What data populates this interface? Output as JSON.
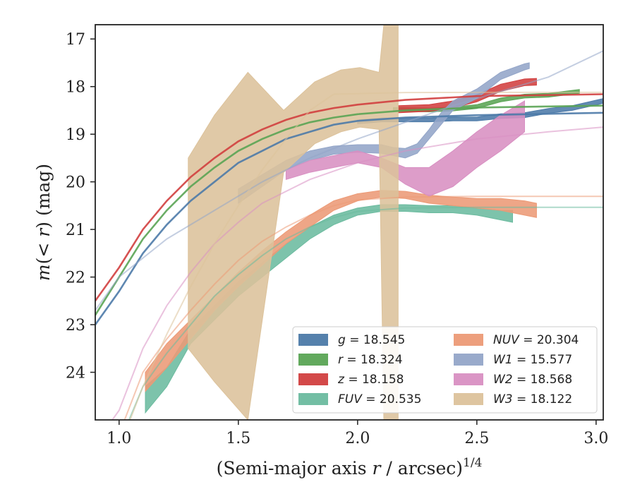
{
  "chart_data": {
    "type": "line",
    "title": "",
    "xlabel": "(Semi-major axis r / arcsec)^{1/4}",
    "xlabel_parts": {
      "pre": "(Semi-major axis ",
      "var": "r",
      "post": " / arcsec)",
      "sup": "1/4"
    },
    "ylabel": "m(< r) (mag)",
    "ylabel_parts": {
      "m": "m",
      "lt": "(< ",
      "r": "r",
      "close": ")",
      "unit": " (mag)"
    },
    "xlim": [
      0.9,
      3.03
    ],
    "ylim": [
      25.0,
      16.7
    ],
    "y_inverted": true,
    "xticks": [
      1.0,
      1.5,
      2.0,
      2.5,
      3.0
    ],
    "xtick_labels": [
      "1.0",
      "1.5",
      "2.0",
      "2.5",
      "3.0"
    ],
    "yticks": [
      17,
      18,
      19,
      20,
      21,
      22,
      23,
      24
    ],
    "ytick_labels": [
      "17",
      "18",
      "19",
      "20",
      "21",
      "22",
      "23",
      "24"
    ],
    "grid": false,
    "legend_placement": "lower-right",
    "legend_columns": 2,
    "series": [
      {
        "name": "g = 18.545",
        "label_var": "g",
        "label_eq": " = ",
        "label_val": "18.545",
        "color": "#4c7aa8",
        "band": [
          [
            2.0,
            18.78,
            18.7
          ],
          [
            2.1,
            18.74,
            18.66
          ],
          [
            2.2,
            18.74,
            18.66
          ],
          [
            2.3,
            18.74,
            18.66
          ],
          [
            2.4,
            18.72,
            18.64
          ],
          [
            2.5,
            18.72,
            18.64
          ],
          [
            2.6,
            18.67,
            18.57
          ],
          [
            2.7,
            18.65,
            18.55
          ],
          [
            2.8,
            18.56,
            18.46
          ],
          [
            2.9,
            18.5,
            18.4
          ],
          [
            3.03,
            18.35,
            18.25
          ]
        ],
        "model": [
          [
            0.9,
            23.0
          ],
          [
            1.0,
            22.3
          ],
          [
            1.1,
            21.5
          ],
          [
            1.2,
            20.9
          ],
          [
            1.3,
            20.4
          ],
          [
            1.4,
            20.0
          ],
          [
            1.5,
            19.6
          ],
          [
            1.6,
            19.35
          ],
          [
            1.7,
            19.1
          ],
          [
            1.8,
            18.95
          ],
          [
            1.9,
            18.8
          ],
          [
            2.0,
            18.72
          ],
          [
            2.2,
            18.65
          ],
          [
            2.5,
            18.6
          ],
          [
            3.03,
            18.55
          ]
        ]
      },
      {
        "name": "r = 18.324",
        "label_var": "r",
        "label_eq": " = ",
        "label_val": "18.324",
        "color": "#5aa454",
        "band": [
          [
            2.15,
            18.52,
            18.44
          ],
          [
            2.3,
            18.53,
            18.45
          ],
          [
            2.4,
            18.51,
            18.43
          ],
          [
            2.5,
            18.46,
            18.38
          ],
          [
            2.6,
            18.32,
            18.24
          ],
          [
            2.7,
            18.24,
            18.16
          ],
          [
            2.8,
            18.22,
            18.14
          ],
          [
            2.93,
            18.14,
            18.06
          ]
        ],
        "model": [
          [
            0.9,
            22.8
          ],
          [
            1.0,
            22.0
          ],
          [
            1.1,
            21.2
          ],
          [
            1.2,
            20.6
          ],
          [
            1.3,
            20.1
          ],
          [
            1.4,
            19.7
          ],
          [
            1.5,
            19.35
          ],
          [
            1.6,
            19.1
          ],
          [
            1.7,
            18.9
          ],
          [
            1.8,
            18.75
          ],
          [
            1.9,
            18.65
          ],
          [
            2.0,
            18.58
          ],
          [
            2.2,
            18.5
          ],
          [
            2.5,
            18.44
          ],
          [
            3.03,
            18.4
          ]
        ]
      },
      {
        "name": "z = 18.158",
        "label_var": "z",
        "label_eq": " = ",
        "label_val": "18.158",
        "color": "#d13f3f",
        "band": [
          [
            2.17,
            18.55,
            18.4
          ],
          [
            2.3,
            18.52,
            18.38
          ],
          [
            2.4,
            18.45,
            18.3
          ],
          [
            2.5,
            18.32,
            18.17
          ],
          [
            2.6,
            18.1,
            17.95
          ],
          [
            2.7,
            17.98,
            17.84
          ],
          [
            2.75,
            17.97,
            17.83
          ]
        ],
        "model": [
          [
            0.9,
            22.5
          ],
          [
            1.0,
            21.8
          ],
          [
            1.1,
            21.0
          ],
          [
            1.2,
            20.4
          ],
          [
            1.3,
            19.9
          ],
          [
            1.4,
            19.5
          ],
          [
            1.5,
            19.15
          ],
          [
            1.6,
            18.9
          ],
          [
            1.7,
            18.7
          ],
          [
            1.8,
            18.55
          ],
          [
            1.9,
            18.45
          ],
          [
            2.0,
            18.38
          ],
          [
            2.2,
            18.28
          ],
          [
            2.5,
            18.2
          ],
          [
            3.03,
            18.16
          ]
        ]
      },
      {
        "name": "FUV = 20.535",
        "label_var": "FUV",
        "label_eq": " = ",
        "label_val": "20.535",
        "color": "#6bbb9f",
        "band": [
          [
            1.11,
            24.85,
            24.3
          ],
          [
            1.2,
            24.3,
            23.9
          ],
          [
            1.3,
            23.4,
            23.1
          ],
          [
            1.4,
            22.9,
            22.6
          ],
          [
            1.5,
            22.4,
            22.1
          ],
          [
            1.6,
            22.0,
            21.7
          ],
          [
            1.7,
            21.6,
            21.3
          ],
          [
            1.8,
            21.2,
            20.95
          ],
          [
            1.9,
            20.9,
            20.7
          ],
          [
            2.0,
            20.7,
            20.55
          ],
          [
            2.1,
            20.62,
            20.48
          ],
          [
            2.2,
            20.62,
            20.48
          ],
          [
            2.3,
            20.65,
            20.5
          ],
          [
            2.4,
            20.65,
            20.5
          ],
          [
            2.5,
            20.7,
            20.55
          ],
          [
            2.6,
            20.8,
            20.6
          ],
          [
            2.65,
            20.85,
            20.6
          ]
        ],
        "model": [
          [
            1.0,
            25.5
          ],
          [
            1.1,
            24.3
          ],
          [
            1.2,
            23.6
          ],
          [
            1.3,
            23.0
          ],
          [
            1.4,
            22.4
          ],
          [
            1.5,
            21.95
          ],
          [
            1.6,
            21.55
          ],
          [
            1.7,
            21.2
          ],
          [
            1.8,
            20.95
          ],
          [
            1.9,
            20.75
          ],
          [
            2.0,
            20.62
          ],
          [
            2.2,
            20.55
          ],
          [
            2.5,
            20.535
          ],
          [
            3.03,
            20.535
          ]
        ]
      },
      {
        "name": "NUV = 20.304",
        "label_var": "NUV",
        "label_eq": " = ",
        "label_val": "20.304",
        "color": "#ec9a76",
        "band": [
          [
            1.11,
            24.4,
            24.0
          ],
          [
            1.2,
            23.9,
            23.4
          ],
          [
            1.3,
            23.3,
            22.9
          ],
          [
            1.4,
            22.7,
            22.4
          ],
          [
            1.5,
            22.2,
            21.9
          ],
          [
            1.6,
            21.75,
            21.45
          ],
          [
            1.7,
            21.3,
            21.05
          ],
          [
            1.8,
            20.95,
            20.7
          ],
          [
            1.9,
            20.6,
            20.4
          ],
          [
            2.0,
            20.4,
            20.25
          ],
          [
            2.1,
            20.32,
            20.18
          ],
          [
            2.2,
            20.35,
            20.2
          ],
          [
            2.3,
            20.45,
            20.28
          ],
          [
            2.4,
            20.5,
            20.32
          ],
          [
            2.5,
            20.55,
            20.35
          ],
          [
            2.6,
            20.6,
            20.35
          ],
          [
            2.7,
            20.7,
            20.4
          ],
          [
            2.75,
            20.75,
            20.45
          ]
        ],
        "model": [
          [
            1.0,
            25.3
          ],
          [
            1.1,
            24.0
          ],
          [
            1.2,
            23.3
          ],
          [
            1.3,
            22.7
          ],
          [
            1.4,
            22.15
          ],
          [
            1.5,
            21.65
          ],
          [
            1.6,
            21.25
          ],
          [
            1.7,
            20.95
          ],
          [
            1.8,
            20.7
          ],
          [
            1.9,
            20.5
          ],
          [
            2.0,
            20.38
          ],
          [
            2.2,
            20.32
          ],
          [
            2.5,
            20.305
          ],
          [
            3.03,
            20.304
          ]
        ]
      },
      {
        "name": "W1 = 15.577",
        "label_var": "W1",
        "label_eq": " = ",
        "label_val": "15.577",
        "color": "#93a5c8",
        "band": [
          [
            1.5,
            20.45,
            20.15
          ],
          [
            1.6,
            20.1,
            19.85
          ],
          [
            1.7,
            19.75,
            19.55
          ],
          [
            1.8,
            19.55,
            19.35
          ],
          [
            1.9,
            19.42,
            19.25
          ],
          [
            2.0,
            19.38,
            19.22
          ],
          [
            2.1,
            19.4,
            19.22
          ],
          [
            2.15,
            19.45,
            19.28
          ],
          [
            2.2,
            19.5,
            19.3
          ],
          [
            2.25,
            19.4,
            19.2
          ],
          [
            2.3,
            19.1,
            18.9
          ],
          [
            2.35,
            18.8,
            18.55
          ],
          [
            2.4,
            18.5,
            18.3
          ],
          [
            2.5,
            18.25,
            18.05
          ],
          [
            2.6,
            17.85,
            17.7
          ],
          [
            2.7,
            17.65,
            17.52
          ],
          [
            2.72,
            17.62,
            17.5
          ]
        ],
        "model": [
          [
            0.9,
            22.7
          ],
          [
            1.0,
            22.0
          ],
          [
            1.2,
            21.2
          ],
          [
            1.4,
            20.6
          ],
          [
            1.6,
            20.0
          ],
          [
            1.8,
            19.5
          ],
          [
            2.0,
            19.1
          ],
          [
            2.2,
            18.75
          ],
          [
            2.4,
            18.4
          ],
          [
            2.6,
            18.1
          ],
          [
            2.8,
            17.8
          ],
          [
            3.03,
            17.25
          ]
        ]
      },
      {
        "name": "W2 = 18.568",
        "label_var": "W2",
        "label_eq": " = ",
        "label_val": "18.568",
        "color": "#d88fc2",
        "band": [
          [
            1.7,
            19.95,
            19.75
          ],
          [
            1.8,
            19.8,
            19.55
          ],
          [
            1.9,
            19.7,
            19.45
          ],
          [
            2.0,
            19.6,
            19.35
          ],
          [
            2.1,
            19.7,
            19.5
          ],
          [
            2.2,
            20.05,
            19.7
          ],
          [
            2.3,
            20.3,
            19.7
          ],
          [
            2.4,
            20.1,
            19.35
          ],
          [
            2.5,
            19.7,
            18.95
          ],
          [
            2.6,
            19.35,
            18.6
          ],
          [
            2.7,
            18.95,
            18.3
          ]
        ],
        "model": [
          [
            0.9,
            25.5
          ],
          [
            1.0,
            24.8
          ],
          [
            1.1,
            23.5
          ],
          [
            1.2,
            22.6
          ],
          [
            1.3,
            21.9
          ],
          [
            1.4,
            21.3
          ],
          [
            1.5,
            20.85
          ],
          [
            1.6,
            20.45
          ],
          [
            1.8,
            19.95
          ],
          [
            2.0,
            19.6
          ],
          [
            2.2,
            19.35
          ],
          [
            2.5,
            19.1
          ],
          [
            2.8,
            18.95
          ],
          [
            3.03,
            18.85
          ]
        ]
      },
      {
        "name": "W3 = 18.122",
        "label_var": "W3",
        "label_eq": " = ",
        "label_val": "18.122",
        "color": "#dcc29b",
        "band": [
          [
            1.29,
            23.5,
            19.5
          ],
          [
            1.4,
            24.2,
            18.6
          ],
          [
            1.54,
            25.0,
            17.7
          ],
          [
            1.69,
            19.8,
            18.5
          ],
          [
            1.82,
            19.2,
            17.9
          ],
          [
            1.93,
            18.95,
            17.65
          ],
          [
            2.01,
            18.85,
            17.6
          ],
          [
            2.09,
            18.9,
            17.7
          ],
          [
            2.11,
            25.0,
            16.7
          ],
          [
            2.17,
            25.0,
            16.7
          ]
        ],
        "model": [
          [
            0.9,
            27.0
          ],
          [
            1.0,
            25.6
          ],
          [
            1.1,
            24.3
          ],
          [
            1.2,
            23.2
          ],
          [
            1.3,
            22.2
          ],
          [
            1.4,
            21.3
          ],
          [
            1.5,
            20.5
          ],
          [
            1.6,
            19.75
          ],
          [
            1.7,
            19.1
          ],
          [
            1.8,
            18.5
          ],
          [
            1.9,
            18.16
          ],
          [
            2.2,
            18.125
          ],
          [
            2.5,
            18.122
          ],
          [
            3.03,
            18.122
          ]
        ]
      }
    ]
  }
}
